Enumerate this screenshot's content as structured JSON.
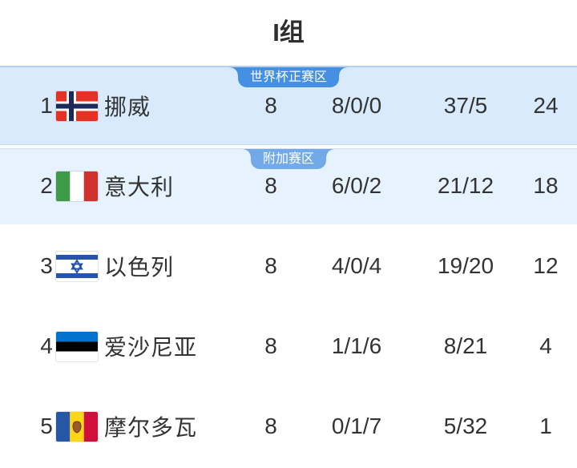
{
  "title": "I组",
  "zones": [
    {
      "label": "世界杯正赛区"
    },
    {
      "label": "附加赛区"
    }
  ],
  "rows": [
    {
      "rank": "1",
      "team": "挪威",
      "flag": "norway",
      "played": "8",
      "record": "8/0/0",
      "goals": "37/5",
      "points": "24"
    },
    {
      "rank": "2",
      "team": "意大利",
      "flag": "italy",
      "played": "8",
      "record": "6/0/2",
      "goals": "21/12",
      "points": "18"
    },
    {
      "rank": "3",
      "team": "以色列",
      "flag": "israel",
      "played": "8",
      "record": "4/0/4",
      "goals": "19/20",
      "points": "12"
    },
    {
      "rank": "4",
      "team": "爱沙尼亚",
      "flag": "estonia",
      "played": "8",
      "record": "1/1/6",
      "goals": "8/21",
      "points": "4"
    },
    {
      "rank": "5",
      "team": "摩尔多瓦",
      "flag": "moldova",
      "played": "8",
      "record": "0/1/7",
      "goals": "5/32",
      "points": "1"
    }
  ],
  "colors": {
    "zone1_bg": "#d9eafc",
    "zone2_bg": "#e6f2fe",
    "badge_primary": "#4590e2",
    "badge_secondary": "#72aae9",
    "text": "#333333"
  }
}
